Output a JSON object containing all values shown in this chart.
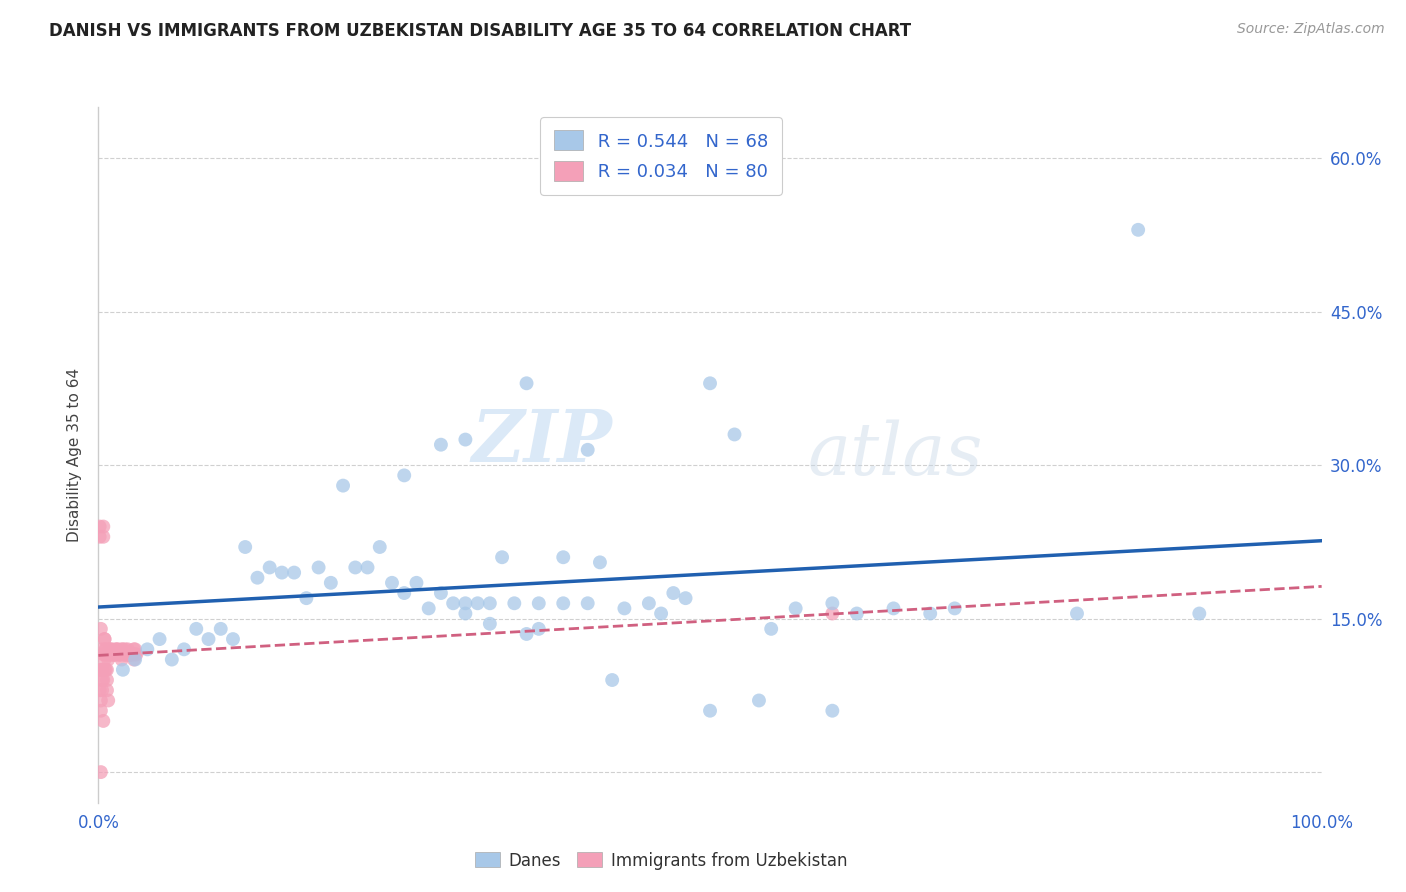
{
  "title": "DANISH VS IMMIGRANTS FROM UZBEKISTAN DISABILITY AGE 35 TO 64 CORRELATION CHART",
  "source": "Source: ZipAtlas.com",
  "ylabel": "Disability Age 35 to 64",
  "xlim": [
    0.0,
    1.0
  ],
  "ylim": [
    -0.03,
    0.65
  ],
  "xticks": [
    0.0,
    0.2,
    0.4,
    0.6,
    0.8,
    1.0
  ],
  "xticklabels": [
    "0.0%",
    "",
    "",
    "",
    "",
    "100.0%"
  ],
  "yticks": [
    0.0,
    0.15,
    0.3,
    0.45,
    0.6
  ],
  "yticklabels_right": [
    "",
    "15.0%",
    "30.0%",
    "45.0%",
    "60.0%"
  ],
  "danes_color": "#a8c8e8",
  "danes_line_color": "#2060b0",
  "immigrants_color": "#f4a0b8",
  "immigrants_line_color": "#d06080",
  "R_danes": 0.544,
  "N_danes": 68,
  "R_immigrants": 0.034,
  "N_immigrants": 80,
  "danes_x": [
    0.02,
    0.03,
    0.04,
    0.05,
    0.06,
    0.07,
    0.08,
    0.09,
    0.1,
    0.11,
    0.12,
    0.13,
    0.14,
    0.15,
    0.16,
    0.17,
    0.18,
    0.19,
    0.2,
    0.21,
    0.22,
    0.23,
    0.24,
    0.25,
    0.26,
    0.27,
    0.28,
    0.29,
    0.3,
    0.31,
    0.32,
    0.33,
    0.35,
    0.36,
    0.38,
    0.4,
    0.41,
    0.42,
    0.43,
    0.45,
    0.46,
    0.47,
    0.48,
    0.5,
    0.52,
    0.54,
    0.55,
    0.57,
    0.6,
    0.62,
    0.65,
    0.68,
    0.7,
    0.8,
    0.85,
    0.9,
    0.3,
    0.25,
    0.35,
    0.28,
    0.3,
    0.32,
    0.34,
    0.36,
    0.38,
    0.4,
    0.5,
    0.6
  ],
  "danes_y": [
    0.1,
    0.11,
    0.12,
    0.13,
    0.11,
    0.12,
    0.14,
    0.13,
    0.14,
    0.13,
    0.22,
    0.19,
    0.2,
    0.195,
    0.195,
    0.17,
    0.2,
    0.185,
    0.28,
    0.2,
    0.2,
    0.22,
    0.185,
    0.175,
    0.185,
    0.16,
    0.175,
    0.165,
    0.155,
    0.165,
    0.145,
    0.21,
    0.135,
    0.14,
    0.21,
    0.315,
    0.205,
    0.09,
    0.16,
    0.165,
    0.155,
    0.175,
    0.17,
    0.38,
    0.33,
    0.07,
    0.14,
    0.16,
    0.165,
    0.155,
    0.16,
    0.155,
    0.16,
    0.155,
    0.53,
    0.155,
    0.325,
    0.29,
    0.38,
    0.32,
    0.165,
    0.165,
    0.165,
    0.165,
    0.165,
    0.165,
    0.06,
    0.06
  ],
  "immigrants_x": [
    0.003,
    0.003,
    0.004,
    0.004,
    0.005,
    0.005,
    0.005,
    0.006,
    0.006,
    0.007,
    0.007,
    0.008,
    0.008,
    0.009,
    0.009,
    0.01,
    0.01,
    0.011,
    0.011,
    0.012,
    0.012,
    0.013,
    0.013,
    0.014,
    0.014,
    0.015,
    0.015,
    0.016,
    0.016,
    0.017,
    0.017,
    0.018,
    0.018,
    0.019,
    0.019,
    0.02,
    0.02,
    0.021,
    0.021,
    0.022,
    0.022,
    0.023,
    0.023,
    0.024,
    0.024,
    0.025,
    0.025,
    0.026,
    0.026,
    0.027,
    0.027,
    0.028,
    0.028,
    0.029,
    0.029,
    0.03,
    0.03,
    0.031,
    0.001,
    0.001,
    0.001,
    0.001,
    0.002,
    0.002,
    0.002,
    0.002,
    0.003,
    0.003,
    0.003,
    0.004,
    0.004,
    0.004,
    0.005,
    0.005,
    0.006,
    0.6,
    0.006,
    0.007,
    0.007,
    0.008
  ],
  "immigrants_y": [
    0.1,
    0.12,
    0.09,
    0.115,
    0.13,
    0.115,
    0.1,
    0.115,
    0.12,
    0.1,
    0.115,
    0.115,
    0.11,
    0.12,
    0.115,
    0.12,
    0.115,
    0.12,
    0.115,
    0.115,
    0.115,
    0.115,
    0.115,
    0.115,
    0.12,
    0.115,
    0.12,
    0.115,
    0.12,
    0.115,
    0.115,
    0.115,
    0.115,
    0.12,
    0.11,
    0.115,
    0.12,
    0.115,
    0.115,
    0.12,
    0.115,
    0.115,
    0.115,
    0.12,
    0.115,
    0.115,
    0.115,
    0.115,
    0.115,
    0.115,
    0.115,
    0.115,
    0.115,
    0.12,
    0.11,
    0.115,
    0.12,
    0.115,
    0.24,
    0.08,
    0.23,
    0.1,
    0.14,
    0.0,
    0.06,
    0.07,
    0.08,
    0.09,
    0.1,
    0.05,
    0.23,
    0.24,
    0.13,
    0.11,
    0.12,
    0.155,
    0.1,
    0.09,
    0.08,
    0.07
  ],
  "watermark_zip": "ZIP",
  "watermark_atlas": "atlas",
  "background_color": "#ffffff",
  "grid_color": "#d0d0d0"
}
